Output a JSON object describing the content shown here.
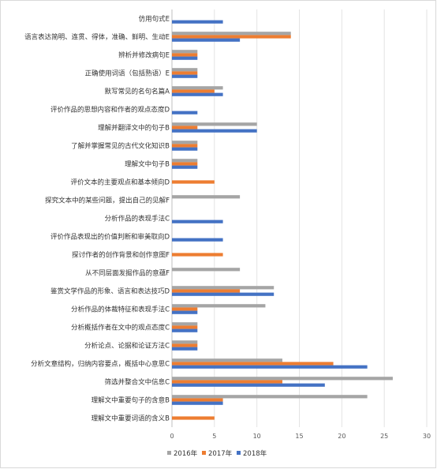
{
  "chart_data": {
    "type": "bar",
    "orientation": "horizontal",
    "title": "",
    "xlabel": "",
    "ylabel": "",
    "xlim": [
      0,
      30
    ],
    "xticks": [
      0,
      5,
      10,
      15,
      20,
      25,
      30
    ],
    "grid": true,
    "legend_position": "bottom",
    "categories": [
      "仿用句式E",
      "语言表达简明、连贯、得体，准确、鲜明、生动E",
      "辨析并修改病句E",
      "正确使用词语（包括熟语）E",
      "默写常见的名句名篇A",
      "评价作品的思想内容和作者的观点态度D",
      "理解并翻译文中的句子B",
      "了解并掌握常见的古代文化知识B",
      "理解文中句子B",
      "评价文本的主要观点和基本倾向D",
      "探究文本中的某些问题，提出自己的见解F",
      "分析作品的表现手法C",
      "评价作品表现出的价值判断和审美取向D",
      "探讨作者的创作背景和创作意图F",
      "从不同层面发掘作品的意蕴F",
      "鉴赏文学作品的形象、语言和表达技巧D",
      "分析作品的体裁特征和表现手法C",
      "分析概括作者在文中的观点态度C",
      "分析论点、论据和论证方法C",
      "分析文章结构，归纳内容要点，概括中心意思C",
      "筛选并整合文中信息C",
      "理解文中重要句子的含意B",
      "理解文中重要词语的含义B"
    ],
    "series": [
      {
        "name": "2016年",
        "color": "#a5a5a5",
        "values": [
          0,
          14,
          3,
          3,
          6,
          0,
          10,
          3,
          3,
          0,
          8,
          0,
          0,
          0,
          8,
          12,
          11,
          3,
          3,
          13,
          26,
          23,
          0
        ]
      },
      {
        "name": "2017年",
        "color": "#ed7d31",
        "values": [
          0,
          14,
          3,
          3,
          5,
          0,
          3,
          3,
          3,
          5,
          0,
          0,
          0,
          6,
          0,
          8,
          3,
          3,
          3,
          19,
          13,
          6,
          5
        ]
      },
      {
        "name": "2018年",
        "color": "#4472c4",
        "values": [
          6,
          8,
          3,
          3,
          6,
          3,
          10,
          3,
          3,
          0,
          0,
          6,
          6,
          0,
          0,
          12,
          3,
          3,
          3,
          23,
          18,
          6,
          0
        ]
      }
    ]
  }
}
